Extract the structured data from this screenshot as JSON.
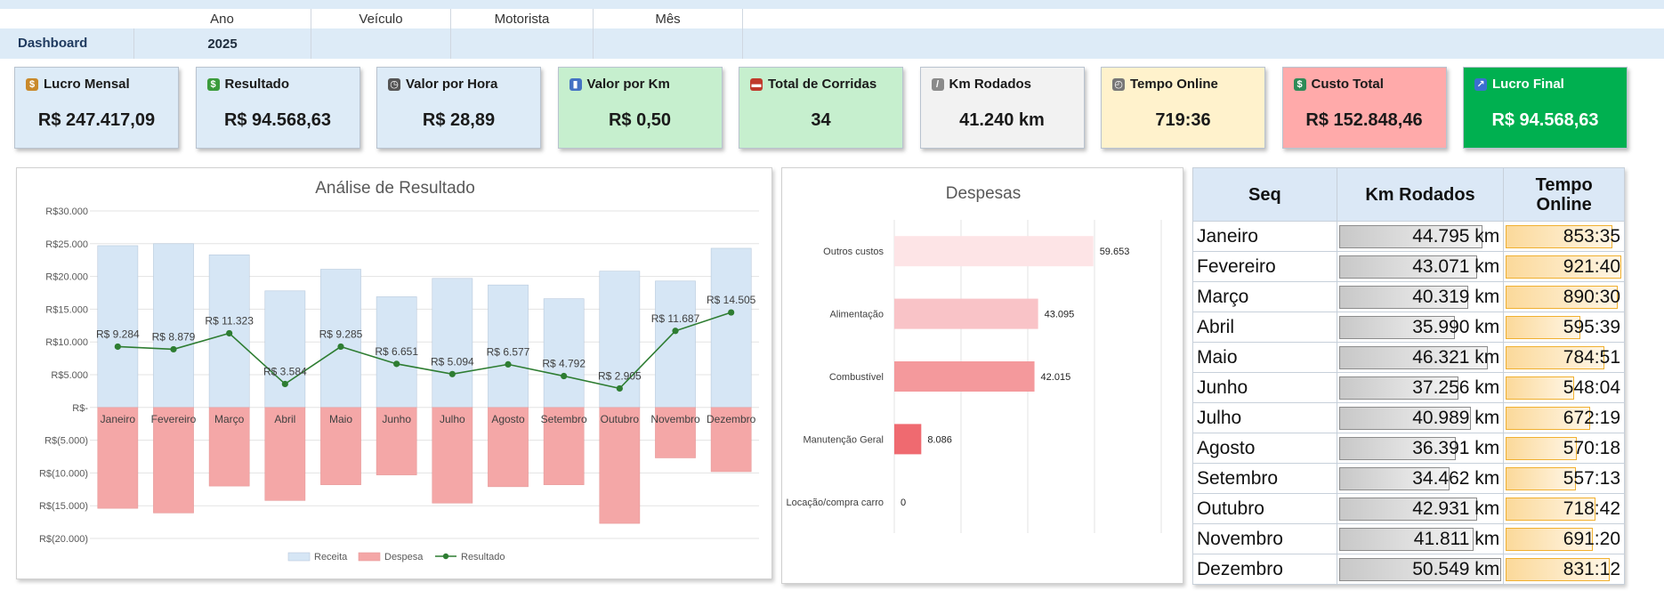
{
  "filters": {
    "headers": [
      "Ano",
      "Veículo",
      "Motorista",
      "Mês"
    ],
    "dashboard_label": "Dashboard",
    "year_value": "2025"
  },
  "kpis": [
    {
      "title": "Lucro Mensal",
      "value": "R$ 247.417,09",
      "icon": "money-bag-icon",
      "bg": "#ddebf7"
    },
    {
      "title": "Resultado",
      "value": "R$ 94.568,63",
      "icon": "banknote-icon",
      "bg": "#ddebf7"
    },
    {
      "title": "Valor por Hora",
      "value": "R$ 28,89",
      "icon": "clock-icon",
      "bg": "#ddebf7"
    },
    {
      "title": "Valor por Km",
      "value": "R$ 0,50",
      "icon": "bar-chart-icon",
      "bg": "#c6efce"
    },
    {
      "title": "Total de Corridas",
      "value": "34",
      "icon": "car-icon",
      "bg": "#c6efce"
    },
    {
      "title": "Km Rodados",
      "value": "41.240 km",
      "icon": "ruler-icon",
      "bg": "#f2f2f2"
    },
    {
      "title": "Tempo Online",
      "value": "719:36",
      "icon": "stopwatch-icon",
      "bg": "#fff2cc"
    },
    {
      "title": "Custo Total",
      "value": "R$ 152.848,46",
      "icon": "money-wings-icon",
      "bg": "#ffaaaa"
    },
    {
      "title": "Lucro Final",
      "value": "R$ 94.568,63",
      "icon": "trend-up-icon",
      "bg": "#00b050"
    }
  ],
  "chart_data": [
    {
      "type": "bar",
      "title": "Análise de Resultado",
      "categories": [
        "Janeiro",
        "Fevereiro",
        "Março",
        "Abril",
        "Maio",
        "Junho",
        "Julho",
        "Agosto",
        "Setembro",
        "Outubro",
        "Novembro",
        "Dezembro"
      ],
      "series": [
        {
          "name": "Receita",
          "values": [
            24700,
            25000,
            23300,
            17800,
            21100,
            16900,
            19700,
            18700,
            16600,
            20800,
            19300,
            24300
          ],
          "color": "#d6e6f5"
        },
        {
          "name": "Despesa",
          "values": [
            -15400,
            -16100,
            -12000,
            -14200,
            -11800,
            -10300,
            -14600,
            -12100,
            -11800,
            -17700,
            -7700,
            -9800
          ],
          "color": "#f4a7a7"
        },
        {
          "name": "Resultado",
          "values": [
            9284,
            8879,
            11323,
            3584,
            9285,
            6651,
            5094,
            6577,
            4792,
            2905,
            11687,
            14505
          ],
          "color": "#2e7d32"
        }
      ],
      "data_labels": [
        "R$ 9.284",
        "R$ 8.879",
        "R$ 11.323",
        "R$ 3.584",
        "R$ 9.285",
        "R$ 6.651",
        "R$ 5.094",
        "R$ 6.577",
        "R$ 4.792",
        "R$ 2.905",
        "R$ 11.687",
        "R$ 14.505"
      ],
      "yticks": [
        "R$30.000",
        "R$25.000",
        "R$20.000",
        "R$15.000",
        "R$10.000",
        "R$5.000",
        "R$-",
        "R$(5.000)",
        "R$(10.000)",
        "R$(15.000)",
        "R$(20.000)"
      ],
      "ylim": [
        -20000,
        30000
      ],
      "legend": [
        "Receita",
        "Despesa",
        "Resultado"
      ],
      "legend_position": "bottom"
    },
    {
      "type": "bar",
      "orientation": "horizontal",
      "title": "Despesas",
      "categories": [
        "Outros custos",
        "Alimentação",
        "Combustível",
        "Manutenção Geral",
        "Locação/compra carro"
      ],
      "values": [
        59653,
        43095,
        42015,
        8086,
        0
      ],
      "labels": [
        "59.653",
        "43.095",
        "42.015",
        "8.086",
        "0"
      ],
      "colors": [
        "#fde4e6",
        "#f9c3c7",
        "#f4999c",
        "#ef6a70",
        "#ef6a70"
      ],
      "xlim": [
        0,
        80000
      ]
    }
  ],
  "table": {
    "headers": [
      "Seq",
      "Km Rodados",
      "Tempo\nOnline"
    ],
    "rows": [
      {
        "month": "Janeiro",
        "km": "44.795 km",
        "km_value": 44795,
        "online": "853:35",
        "online_min": 51215
      },
      {
        "month": "Fevereiro",
        "km": "43.071 km",
        "km_value": 43071,
        "online": "921:40",
        "online_min": 55300
      },
      {
        "month": "Março",
        "km": "40.319 km",
        "km_value": 40319,
        "online": "890:30",
        "online_min": 53430
      },
      {
        "month": "Abril",
        "km": "35.990 km",
        "km_value": 35990,
        "online": "595:39",
        "online_min": 35739
      },
      {
        "month": "Maio",
        "km": "46.321 km",
        "km_value": 46321,
        "online": "784:51",
        "online_min": 47091
      },
      {
        "month": "Junho",
        "km": "37.256 km",
        "km_value": 37256,
        "online": "548:04",
        "online_min": 32884
      },
      {
        "month": "Julho",
        "km": "40.989 km",
        "km_value": 40989,
        "online": "672:19",
        "online_min": 40339
      },
      {
        "month": "Agosto",
        "km": "36.391 km",
        "km_value": 36391,
        "online": "570:18",
        "online_min": 34218
      },
      {
        "month": "Setembro",
        "km": "34.462 km",
        "km_value": 34462,
        "online": "557:13",
        "online_min": 33433
      },
      {
        "month": "Outubro",
        "km": "42.931 km",
        "km_value": 42931,
        "online": "718:42",
        "online_min": 43122
      },
      {
        "month": "Novembro",
        "km": "41.811 km",
        "km_value": 41811,
        "online": "691:20",
        "online_min": 41480
      },
      {
        "month": "Dezembro",
        "km": "50.549 km",
        "km_value": 50549,
        "online": "831:12",
        "online_min": 49872
      }
    ]
  }
}
